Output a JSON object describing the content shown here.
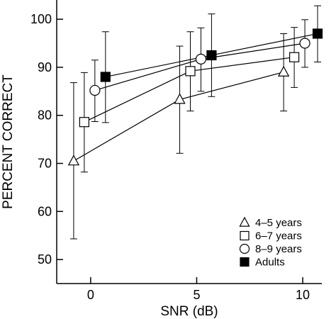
{
  "chart_data": {
    "type": "line",
    "title": "",
    "xlabel": "SNR (dB)",
    "ylabel": "PERCENT CORRECT",
    "xlim": [
      -1.6,
      10.9
    ],
    "ylim": [
      45,
      104
    ],
    "xticks": [
      0,
      5,
      10
    ],
    "yticks": [
      50,
      60,
      70,
      80,
      90,
      100
    ],
    "xtick_labels": [
      "0",
      "5",
      "10"
    ],
    "ytick_labels": [
      "50",
      "60",
      "70",
      "80",
      "90",
      "100"
    ],
    "grid": false,
    "legend": "bottom-right",
    "series": [
      {
        "name": "4–5 years",
        "marker": "triangle-open",
        "x": [
          -0.8,
          4.2,
          9.1
        ],
        "y": [
          70.5,
          83.3,
          89.0
        ],
        "err_low": [
          54.3,
          72.1,
          80.9
        ],
        "err_high": [
          86.8,
          94.4,
          97.0
        ]
      },
      {
        "name": "6–7 years",
        "marker": "square-open",
        "x": [
          -0.3,
          4.7,
          9.6
        ],
        "y": [
          78.6,
          89.2,
          92.1
        ],
        "err_low": [
          68.2,
          80.9,
          85.8
        ],
        "err_high": [
          88.9,
          97.4,
          98.3
        ]
      },
      {
        "name": "8–9 years",
        "marker": "circle-open",
        "x": [
          0.2,
          5.2,
          10.1
        ],
        "y": [
          85.2,
          91.7,
          95.0
        ],
        "err_low": [
          78.7,
          85.0,
          90.0
        ],
        "err_high": [
          91.5,
          98.2,
          99.9
        ]
      },
      {
        "name": "Adults",
        "marker": "square-filled",
        "x": [
          0.7,
          5.7,
          10.7
        ],
        "y": [
          88.0,
          92.5,
          97.0
        ],
        "err_low": [
          78.5,
          83.9,
          91.1
        ],
        "err_high": [
          97.4,
          101.1,
          102.8
        ]
      }
    ]
  }
}
